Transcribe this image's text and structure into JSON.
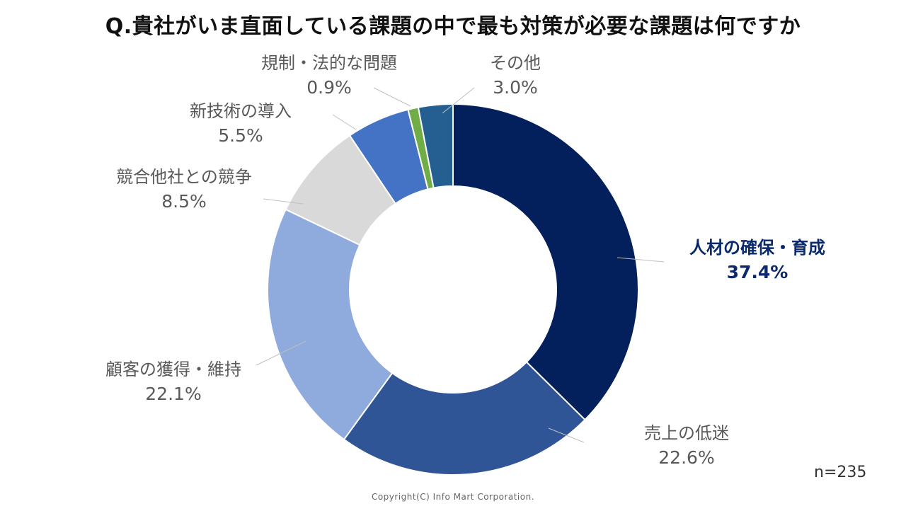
{
  "chart_data": {
    "type": "pie",
    "title": "Q.貴社がいま直面している課題の中で最も対策が必要な課題は何ですか",
    "slices": [
      {
        "label": "人材の確保・育成",
        "value": 37.4,
        "value_label": "37.4%",
        "color": "#031f5c",
        "label_color": "#0b2a6b"
      },
      {
        "label": "売上の低迷",
        "value": 22.6,
        "value_label": "22.6%",
        "color": "#2f5597",
        "label_color": "#595959"
      },
      {
        "label": "顧客の獲得・維持",
        "value": 22.1,
        "value_label": "22.1%",
        "color": "#8faadc",
        "label_color": "#595959"
      },
      {
        "label": "競合他社との競争",
        "value": 8.5,
        "value_label": "8.5%",
        "color": "#d9d9d9",
        "label_color": "#595959"
      },
      {
        "label": "新技術の導入",
        "value": 5.5,
        "value_label": "5.5%",
        "color": "#4472c4",
        "label_color": "#595959"
      },
      {
        "label": "規制・法的な問題",
        "value": 0.9,
        "value_label": "0.9%",
        "color": "#70ad47",
        "label_color": "#595959"
      },
      {
        "label": "その他",
        "value": 3.0,
        "value_label": "3.0%",
        "color": "#255e91",
        "label_color": "#595959"
      }
    ],
    "donut": true,
    "start": "12 o'clock",
    "direction": "clockwise"
  },
  "sample_size": "n=235",
  "copyright": "Copyright(C) Info Mart Corporation."
}
